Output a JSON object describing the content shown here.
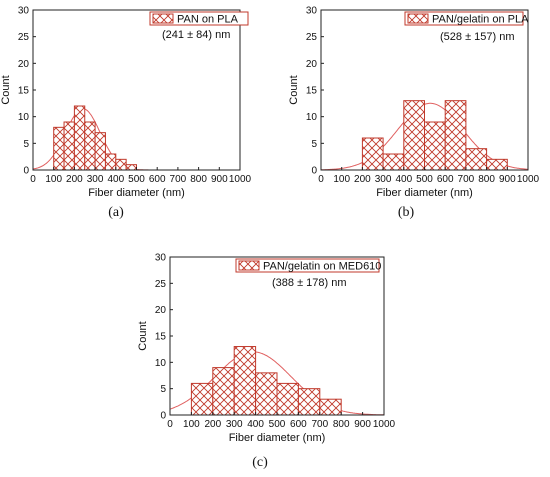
{
  "chart_data": [
    {
      "type": "bar",
      "panel_label": "(a)",
      "legend": "PAN on PLA",
      "annotation": "(241 ± 84) nm",
      "xlabel": "Fiber diameter (nm)",
      "ylabel": "Count",
      "xlim": [
        0,
        1000
      ],
      "ylim": [
        0,
        30
      ],
      "x_ticks": [
        0,
        100,
        200,
        300,
        400,
        500,
        600,
        700,
        800,
        900,
        1000
      ],
      "y_ticks": [
        0,
        5,
        10,
        15,
        20,
        25,
        30
      ],
      "bin_width": 50,
      "bins": [
        100,
        150,
        200,
        250,
        300,
        350,
        400,
        450
      ],
      "counts": [
        8,
        9,
        12,
        9,
        7,
        3,
        2,
        1
      ],
      "fit": {
        "mean": 241,
        "sd": 84,
        "peak": 11.5
      },
      "accent_color": "#c0392b"
    },
    {
      "type": "bar",
      "panel_label": "(b)",
      "legend": "PAN/gelatin on PLA",
      "annotation": "(528 ± 157) nm",
      "xlabel": "Fiber diameter (nm)",
      "ylabel": "Count",
      "xlim": [
        0,
        1000
      ],
      "ylim": [
        0,
        30
      ],
      "x_ticks": [
        0,
        100,
        200,
        300,
        400,
        500,
        600,
        700,
        800,
        900,
        1000
      ],
      "y_ticks": [
        0,
        5,
        10,
        15,
        20,
        25,
        30
      ],
      "bin_width": 100,
      "bins": [
        200,
        300,
        400,
        500,
        600,
        700,
        800
      ],
      "counts": [
        6,
        3,
        13,
        9,
        13,
        4,
        2
      ],
      "fit": {
        "mean": 528,
        "sd": 157,
        "peak": 12.5
      },
      "accent_color": "#c0392b"
    },
    {
      "type": "bar",
      "panel_label": "(c)",
      "legend": "PAN/gelatin on MED610",
      "annotation": "(388 ± 178) nm",
      "xlabel": "Fiber diameter (nm)",
      "ylabel": "Count",
      "xlim": [
        0,
        1000
      ],
      "ylim": [
        0,
        30
      ],
      "x_ticks": [
        0,
        100,
        200,
        300,
        400,
        500,
        600,
        700,
        800,
        900,
        1000
      ],
      "y_ticks": [
        0,
        5,
        10,
        15,
        20,
        25,
        30
      ],
      "bin_width": 100,
      "bins": [
        100,
        200,
        300,
        400,
        500,
        600,
        700
      ],
      "counts": [
        6,
        9,
        13,
        8,
        6,
        5,
        3
      ],
      "fit": {
        "mean": 388,
        "sd": 178,
        "peak": 12
      },
      "accent_color": "#c0392b"
    }
  ]
}
